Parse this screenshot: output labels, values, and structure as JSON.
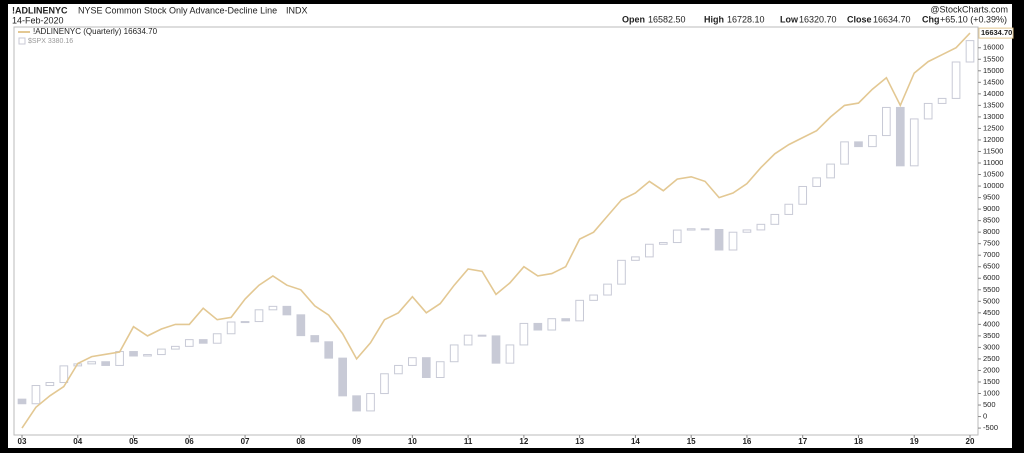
{
  "chart_data": {
    "type": "line",
    "symbol": "!ADLINENYC",
    "title": "NYSE Common Stock Only Advance-Decline Line",
    "exchange": "INDX",
    "date": "14-Feb-2020",
    "source": "@StockCharts.com",
    "quote": {
      "open_label": "Open",
      "open": "16582.50",
      "high_label": "High",
      "high": "16728.10",
      "low_label": "Low",
      "low": "16320.70",
      "close_label": "Close",
      "close": "16634.70",
      "chg_label": "Chg",
      "chg": "+65.10 (+0.39%)"
    },
    "last_label": "16634.70",
    "categories": [
      "03",
      null,
      null,
      null,
      "04",
      null,
      null,
      null,
      "05",
      null,
      null,
      null,
      "06",
      null,
      null,
      null,
      "07",
      null,
      null,
      null,
      "08",
      null,
      null,
      null,
      "09",
      null,
      null,
      null,
      "10",
      null,
      null,
      null,
      "11",
      null,
      null,
      null,
      "12",
      null,
      null,
      null,
      "13",
      null,
      null,
      null,
      "14",
      null,
      null,
      null,
      "15",
      null,
      null,
      null,
      "16",
      null,
      null,
      null,
      "17",
      null,
      null,
      null,
      "18",
      null,
      null,
      null,
      "19",
      null,
      null,
      null,
      "20"
    ],
    "series": [
      {
        "name": "!ADLINENYC (Quarterly) 16634.70",
        "color": "#e3c893",
        "values": [
          -500,
          400,
          900,
          1300,
          2300,
          2600,
          2700,
          2800,
          3900,
          3500,
          3800,
          4000,
          4000,
          4700,
          4200,
          4300,
          5100,
          5700,
          6100,
          5700,
          5500,
          4800,
          4400,
          3600,
          2500,
          3200,
          4200,
          4500,
          5200,
          4500,
          4900,
          5700,
          6400,
          6300,
          5300,
          5800,
          6500,
          6100,
          6200,
          6500,
          7700,
          8000,
          8700,
          9400,
          9700,
          10200,
          9800,
          10300,
          10400,
          10200,
          9500,
          9700,
          10100,
          10800,
          11400,
          11800,
          12100,
          12400,
          13000,
          13500,
          13600,
          14200,
          14700,
          13500,
          14900,
          15400,
          15700,
          16000,
          16634.7
        ]
      },
      {
        "name": "$SPX 3380.16",
        "type": "candlestick",
        "axis": "y2",
        "color": "#c8cad6",
        "open": [
          880,
          848,
          975,
          996,
          1112,
          1126,
          1141,
          1115,
          1212,
          1181,
          1191,
          1229,
          1248,
          1295,
          1270,
          1336,
          1418,
          1421,
          1503,
          1527,
          1468,
          1323,
          1280,
          1166,
          903,
          798,
          919,
          1057,
          1115,
          1169,
          1031,
          1141,
          1258,
          1326,
          1321,
          1131,
          1258,
          1408,
          1362,
          1441,
          1426,
          1569,
          1606,
          1682,
          1848,
          1872,
          1960,
          1972,
          2059,
          2068,
          2063,
          1920,
          2044,
          2060,
          2099,
          2168,
          2239,
          2363,
          2423,
          2519,
          2674,
          2641,
          2718,
          2914,
          2507,
          2834,
          2942,
          2977,
          3231
        ],
        "close": [
          848,
          975,
          996,
          1112,
          1126,
          1141,
          1115,
          1212,
          1181,
          1191,
          1229,
          1248,
          1295,
          1270,
          1336,
          1418,
          1421,
          1503,
          1527,
          1468,
          1323,
          1280,
          1166,
          903,
          798,
          919,
          1057,
          1115,
          1169,
          1031,
          1141,
          1258,
          1326,
          1321,
          1131,
          1258,
          1408,
          1362,
          1441,
          1426,
          1569,
          1606,
          1682,
          1848,
          1872,
          1960,
          1972,
          2059,
          2068,
          2063,
          1920,
          2044,
          2060,
          2099,
          2168,
          2239,
          2363,
          2423,
          2519,
          2674,
          2641,
          2718,
          2914,
          2507,
          2834,
          2942,
          2977,
          3231,
          3380
        ]
      }
    ],
    "ylim": [
      -800,
      16900
    ],
    "y2lim": [
      630,
      3475
    ],
    "yticks": [
      -500,
      0,
      500,
      1000,
      1500,
      2000,
      2500,
      3000,
      3500,
      4000,
      4500,
      5000,
      5500,
      6000,
      6500,
      7000,
      7500,
      8000,
      8500,
      9000,
      9500,
      10000,
      10500,
      11000,
      11500,
      12000,
      12500,
      13000,
      13500,
      14000,
      14500,
      15000,
      15500,
      16000
    ]
  }
}
